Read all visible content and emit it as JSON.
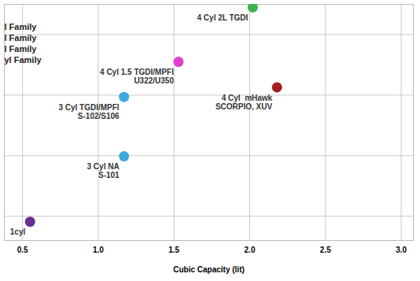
{
  "chart_data": {
    "type": "scatter",
    "x_label": "Cubic Capacity (lit)",
    "x": [
      0.55,
      1.17,
      1.17,
      1.53,
      2.02,
      2.18
    ],
    "values": [
      0.91,
      1.99,
      2.97,
      3.55,
      4.45,
      3.13
    ],
    "labels": [
      "1cyl",
      "3 Cyl NA\nS-101",
      "3 Cyl TGDI/MPFI\nS-102/S106",
      "4 Cyl 1.5 TGDI/MPFI\nU322/U350",
      "4 Cyl 2L TGDI",
      "4 Cyl  mHawk\nSCORPIO, XUV"
    ],
    "colors": [
      "#6a2c91",
      "#3fa9dc",
      "#3fa9dc",
      "#e040d0",
      "#3cb34a",
      "#a0201e"
    ],
    "annotations": [
      "l Family",
      "l Family",
      "l Family",
      "yl Family"
    ],
    "xlim": [
      0.38,
      3.08
    ],
    "xticks": [
      {
        "value": 0.5,
        "label": "0.5"
      },
      {
        "value": 1,
        "label": "1.0"
      },
      {
        "value": 1.5,
        "label": "1.5"
      },
      {
        "value": 2,
        "label": "2.0"
      },
      {
        "value": 2.5,
        "label": "2.5"
      },
      {
        "value": 3,
        "label": "3.0"
      }
    ],
    "ylim": [
      0.6,
      4.5
    ],
    "yticks": [
      1,
      2,
      3,
      4
    ],
    "tick_labels": "x",
    "grid": true,
    "marker": "circle"
  }
}
